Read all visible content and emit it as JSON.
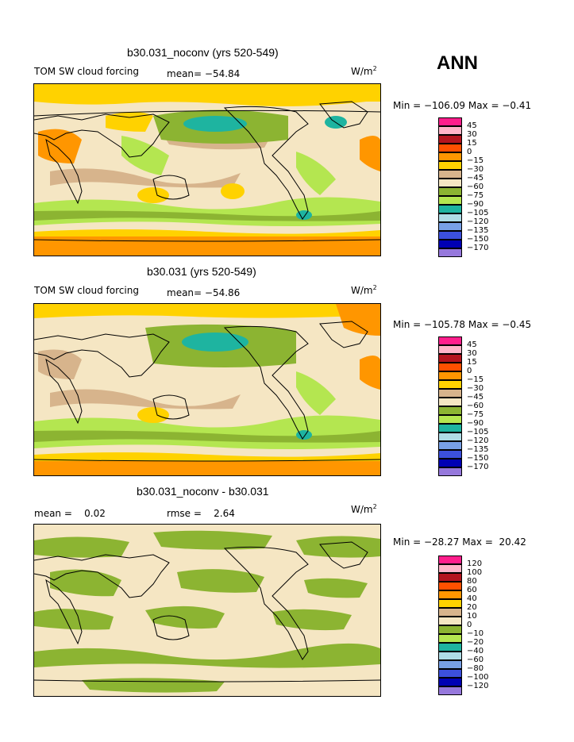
{
  "season": "ANN",
  "panels": [
    {
      "title": "b30.031_noconv (yrs 520-549)",
      "left_label": "TOM SW cloud forcing",
      "mean_label": "mean= −54.84",
      "units": "W/m",
      "units_sup": "2",
      "minmax": "Min = −106.09 Max =   −0.41",
      "colorbar_labels": [
        "45",
        "30",
        "15",
        "0",
        "−15",
        "−30",
        "−45",
        "−60",
        "−75",
        "−90",
        "−105",
        "−120",
        "−135",
        "−150",
        "−170"
      ]
    },
    {
      "title": "b30.031 (yrs 520-549)",
      "left_label": "TOM SW cloud forcing",
      "mean_label": "mean= −54.86",
      "units": "W/m",
      "units_sup": "2",
      "minmax": "Min = −105.78 Max =   −0.45",
      "colorbar_labels": [
        "45",
        "30",
        "15",
        "0",
        "−15",
        "−30",
        "−45",
        "−60",
        "−75",
        "−90",
        "−105",
        "−120",
        "−135",
        "−150",
        "−170"
      ]
    },
    {
      "title": "b30.031_noconv - b30.031",
      "left_label": "mean =    0.02",
      "mean_label": "rmse =    2.64",
      "units": "W/m",
      "units_sup": "2",
      "minmax": "Min = −28.27 Max =  20.42",
      "colorbar_labels": [
        "120",
        "100",
        "80",
        "60",
        "40",
        "20",
        "10",
        "0",
        "−10",
        "−20",
        "−40",
        "−60",
        "−80",
        "−100",
        "−120"
      ]
    }
  ],
  "colors": {
    "palette": [
      "#ff1e8c",
      "#ffb4c8",
      "#b4141e",
      "#ff5000",
      "#ff9600",
      "#ffd200",
      "#d7b48c",
      "#f5e6c3",
      "#8cb432",
      "#b4e650",
      "#1eb4a0",
      "#afdce6",
      "#78a0e6",
      "#3c50dc",
      "#0000b4",
      "#9678dc"
    ],
    "land_outline": "#000000"
  }
}
